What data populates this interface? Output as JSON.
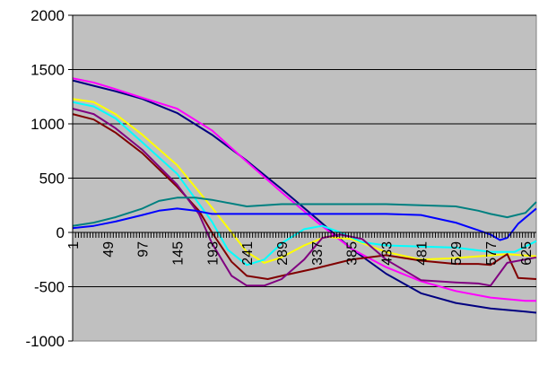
{
  "chart_data": {
    "type": "line",
    "title": "",
    "xlabel": "",
    "ylabel": "",
    "xlim": [
      1,
      640
    ],
    "ylim": [
      -1000,
      2000
    ],
    "yticks": [
      -1000,
      -500,
      0,
      500,
      1000,
      1500,
      2000
    ],
    "x_tick_labels": [
      "1",
      "49",
      "97",
      "145",
      "193",
      "241",
      "289",
      "337",
      "385",
      "433",
      "481",
      "529",
      "577",
      "625"
    ],
    "grid": "horizontal",
    "legend": "none",
    "plot_background": "#c0c0c0",
    "series": [
      {
        "color": "#000080",
        "x": [
          1,
          30,
          60,
          97,
          145,
          193,
          241,
          289,
          337,
          385,
          433,
          481,
          529,
          577,
          625,
          640
        ],
        "values": [
          1400,
          1350,
          1300,
          1230,
          1100,
          900,
          660,
          400,
          130,
          -150,
          -380,
          -560,
          -650,
          -700,
          -730,
          -740
        ]
      },
      {
        "color": "#ff00ff",
        "x": [
          1,
          30,
          60,
          97,
          145,
          193,
          241,
          289,
          337,
          385,
          433,
          481,
          529,
          577,
          625,
          640
        ],
        "values": [
          1420,
          1380,
          1320,
          1240,
          1140,
          940,
          650,
          370,
          100,
          -150,
          -320,
          -450,
          -540,
          -600,
          -630,
          -630
        ]
      },
      {
        "color": "#ffff00",
        "x": [
          1,
          30,
          60,
          97,
          145,
          193,
          241,
          265,
          289,
          320,
          350,
          385,
          433,
          481,
          520,
          560,
          600,
          640
        ],
        "values": [
          1230,
          1200,
          1090,
          900,
          620,
          230,
          -180,
          -280,
          -230,
          -120,
          -40,
          -60,
          -180,
          -250,
          -240,
          -220,
          -200,
          -220
        ]
      },
      {
        "color": "#00ffff",
        "x": [
          1,
          30,
          60,
          97,
          145,
          193,
          215,
          241,
          265,
          289,
          320,
          345,
          370,
          400,
          433,
          481,
          529,
          577,
          610,
          640
        ],
        "values": [
          1200,
          1160,
          1050,
          830,
          540,
          100,
          -160,
          -300,
          -250,
          -100,
          30,
          60,
          0,
          -90,
          -120,
          -130,
          -140,
          -180,
          -180,
          -80
        ]
      },
      {
        "color": "#800000",
        "x": [
          1,
          30,
          60,
          97,
          145,
          175,
          193,
          220,
          241,
          270,
          289,
          337,
          385,
          433,
          481,
          529,
          560,
          577,
          600,
          615,
          640
        ],
        "values": [
          1090,
          1040,
          920,
          730,
          420,
          200,
          0,
          -270,
          -400,
          -430,
          -400,
          -330,
          -250,
          -210,
          -260,
          -290,
          -290,
          -300,
          -200,
          -420,
          -430
        ]
      },
      {
        "color": "#800080",
        "x": [
          1,
          30,
          60,
          97,
          145,
          175,
          193,
          220,
          241,
          265,
          289,
          320,
          345,
          370,
          400,
          433,
          481,
          529,
          560,
          577,
          600,
          640
        ],
        "values": [
          1140,
          1090,
          960,
          760,
          440,
          170,
          -100,
          -400,
          -490,
          -490,
          -430,
          -250,
          -50,
          -20,
          -60,
          -250,
          -440,
          -460,
          -470,
          -490,
          -280,
          -230
        ]
      },
      {
        "color": "#008080",
        "x": [
          1,
          30,
          60,
          97,
          120,
          145,
          170,
          193,
          241,
          289,
          337,
          385,
          433,
          481,
          529,
          560,
          577,
          600,
          625,
          640
        ],
        "values": [
          60,
          90,
          140,
          220,
          290,
          320,
          320,
          300,
          240,
          260,
          260,
          260,
          260,
          250,
          240,
          200,
          170,
          140,
          180,
          280
        ]
      },
      {
        "color": "#0000ff",
        "x": [
          1,
          30,
          60,
          97,
          120,
          145,
          170,
          193,
          241,
          289,
          337,
          385,
          433,
          481,
          529,
          560,
          577,
          590,
          600,
          615,
          640
        ],
        "values": [
          40,
          60,
          100,
          160,
          200,
          220,
          200,
          170,
          170,
          170,
          170,
          170,
          170,
          160,
          90,
          20,
          -20,
          -70,
          -50,
          80,
          220
        ]
      }
    ]
  }
}
